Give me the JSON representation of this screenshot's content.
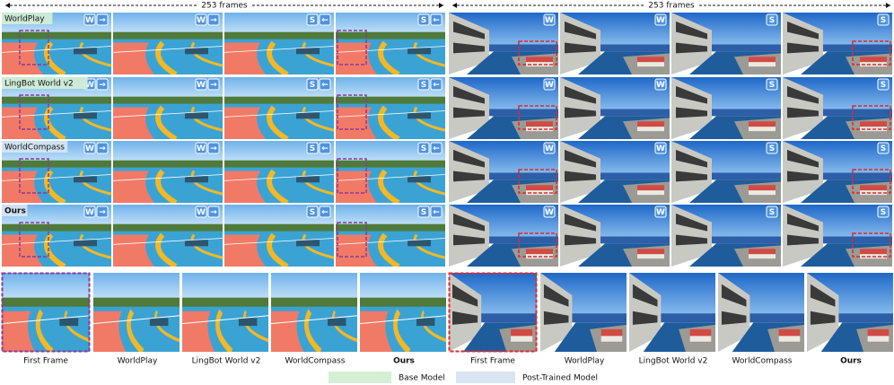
{
  "panels": [
    {
      "frames": "253 frames",
      "scene": "court",
      "rows": [
        {
          "label": "WorldPlay",
          "badges": [
            [
              "W",
              "→"
            ],
            [
              "W",
              "→"
            ],
            [
              "S",
              "←"
            ],
            [
              "S",
              "←"
            ]
          ]
        },
        {
          "label": "LingBot World v2",
          "badges": [
            [
              "W",
              "→"
            ],
            [
              "W",
              "→"
            ],
            [
              "S",
              "←"
            ],
            [
              "S",
              "←"
            ]
          ]
        },
        {
          "label": "WorldCompass",
          "badges": [
            [
              "W",
              "→"
            ],
            [
              "W",
              "→"
            ],
            [
              "S",
              "←"
            ],
            [
              "S",
              "←"
            ]
          ]
        },
        {
          "label": "Ours",
          "badges": [
            [
              "W",
              "→"
            ],
            [
              "W",
              "→"
            ],
            [
              "S",
              "←"
            ],
            [
              "S",
              "←"
            ]
          ]
        }
      ]
    },
    {
      "frames": "253 frames",
      "scene": "pool",
      "rows": [
        {
          "badges": [
            [
              "W"
            ],
            [
              "W"
            ],
            [
              "S"
            ],
            [
              "S"
            ]
          ]
        },
        {
          "badges": [
            [
              "W"
            ],
            [
              "W"
            ],
            [
              "S"
            ],
            [
              "S"
            ]
          ]
        },
        {
          "badges": [
            [
              "W"
            ],
            [
              "W"
            ],
            [
              "S"
            ],
            [
              "S"
            ]
          ]
        },
        {
          "badges": [
            [
              "W"
            ],
            [
              "W"
            ],
            [
              "S"
            ],
            [
              "S"
            ]
          ]
        }
      ]
    }
  ],
  "comparisons": [
    {
      "captions": [
        "First Frame",
        "WorldPlay",
        "LingBot World v2",
        "WorldCompass",
        "Ours"
      ]
    },
    {
      "captions": [
        "First Frame",
        "WorldPlay",
        "LingBot World v2",
        "WorldCompass",
        "Ours"
      ]
    }
  ],
  "legend": [
    {
      "label": "Base Model",
      "color": "#d4efd3"
    },
    {
      "label": "Post-Trained Model",
      "color": "#d9e5f3"
    }
  ]
}
